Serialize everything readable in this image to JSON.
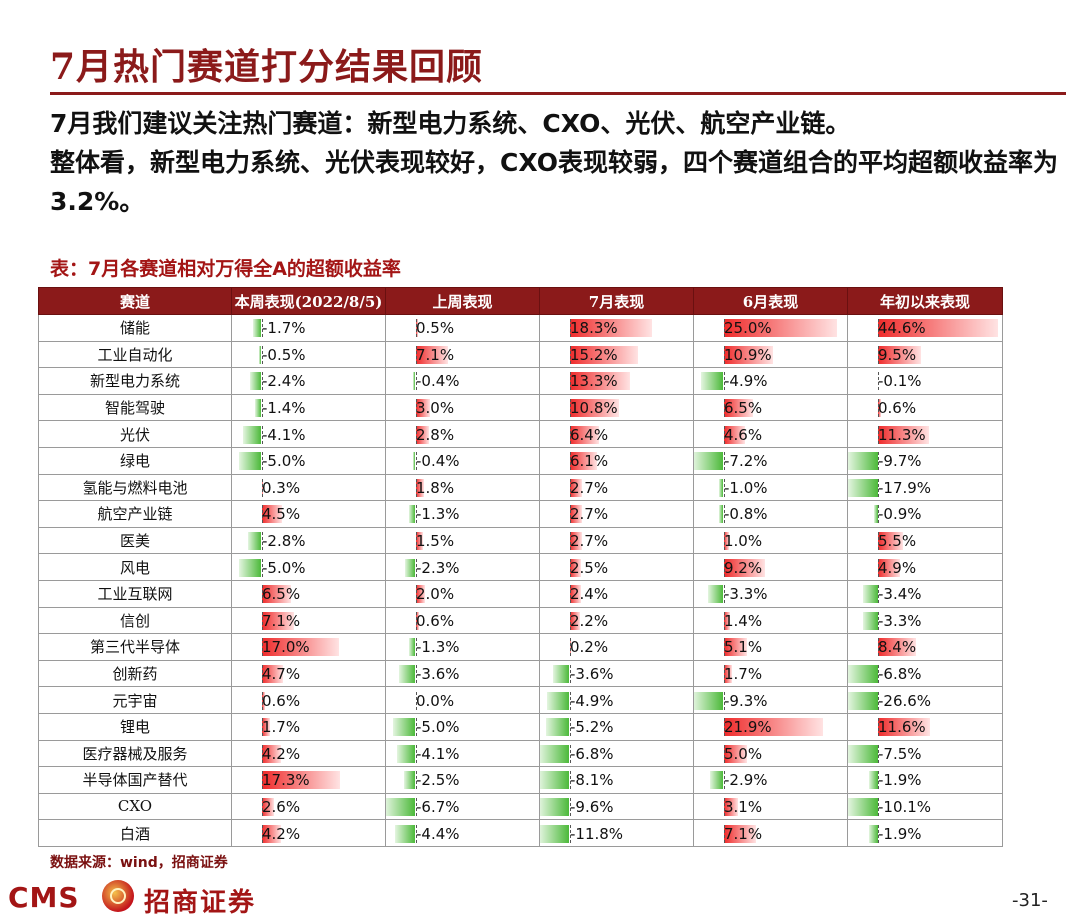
{
  "title": "7月热门赛道打分结果回顾",
  "summary": {
    "line1": "7月我们建议关注热门赛道：新型电力系统、CXO、光伏、航空产业链。",
    "line2": "整体看，新型电力系统、光伏表现较好，CXO表现较弱，四个赛道组合的平均超额收益率为3.2%。"
  },
  "table": {
    "caption": "表：7月各赛道相对万得全A的超额收益率",
    "headers": [
      "赛道",
      "本周表现(2022/8/5)",
      "上周表现",
      "7月表现",
      "6月表现",
      "年初以来表现"
    ],
    "colors": {
      "positive": "#ef2b2b",
      "negative": "#4cb93a",
      "header_bg": "#8b1a1a"
    },
    "rows": [
      {
        "name": "储能",
        "values": [
          "-1.7%",
          "0.5%",
          "18.3%",
          "25.0%",
          "44.6%"
        ]
      },
      {
        "name": "工业自动化",
        "values": [
          "-0.5%",
          "7.1%",
          "15.2%",
          "10.9%",
          "9.5%"
        ]
      },
      {
        "name": "新型电力系统",
        "values": [
          "-2.4%",
          "-0.4%",
          "13.3%",
          "-4.9%",
          "-0.1%"
        ]
      },
      {
        "name": "智能驾驶",
        "values": [
          "-1.4%",
          "3.0%",
          "10.8%",
          "6.5%",
          "0.6%"
        ]
      },
      {
        "name": "光伏",
        "values": [
          "-4.1%",
          "2.8%",
          "6.4%",
          "4.6%",
          "11.3%"
        ]
      },
      {
        "name": "绿电",
        "values": [
          "-5.0%",
          "-0.4%",
          "6.1%",
          "-7.2%",
          "-9.7%"
        ]
      },
      {
        "name": "氢能与燃料电池",
        "values": [
          "0.3%",
          "1.8%",
          "2.7%",
          "-1.0%",
          "-17.9%"
        ]
      },
      {
        "name": "航空产业链",
        "values": [
          "4.5%",
          "-1.3%",
          "2.7%",
          "-0.8%",
          "-0.9%"
        ]
      },
      {
        "name": "医美",
        "values": [
          "-2.8%",
          "1.5%",
          "2.7%",
          "1.0%",
          "5.5%"
        ]
      },
      {
        "name": "风电",
        "values": [
          "-5.0%",
          "-2.3%",
          "2.5%",
          "9.2%",
          "4.9%"
        ]
      },
      {
        "name": "工业互联网",
        "values": [
          "6.5%",
          "2.0%",
          "2.4%",
          "-3.3%",
          "-3.4%"
        ]
      },
      {
        "name": "信创",
        "values": [
          "7.1%",
          "0.6%",
          "2.2%",
          "1.4%",
          "-3.3%"
        ]
      },
      {
        "name": "第三代半导体",
        "values": [
          "17.0%",
          "-1.3%",
          "0.2%",
          "5.1%",
          "8.4%"
        ]
      },
      {
        "name": "创新药",
        "values": [
          "4.7%",
          "-3.6%",
          "-3.6%",
          "1.7%",
          "-6.8%"
        ]
      },
      {
        "name": "元宇宙",
        "values": [
          "0.6%",
          "0.0%",
          "-4.9%",
          "-9.3%",
          "-26.6%"
        ]
      },
      {
        "name": "锂电",
        "values": [
          "1.7%",
          "-5.0%",
          "-5.2%",
          "21.9%",
          "11.6%"
        ]
      },
      {
        "name": "医疗器械及服务",
        "values": [
          "4.2%",
          "-4.1%",
          "-6.8%",
          "5.0%",
          "-7.5%"
        ]
      },
      {
        "name": "半导体国产替代",
        "values": [
          "17.3%",
          "-2.5%",
          "-8.1%",
          "-2.9%",
          "-1.9%"
        ]
      },
      {
        "name": "CXO",
        "values": [
          "2.6%",
          "-6.7%",
          "-9.6%",
          "3.1%",
          "-10.1%"
        ]
      },
      {
        "name": "白酒",
        "values": [
          "4.2%",
          "-4.4%",
          "-11.8%",
          "7.1%",
          "-1.9%"
        ]
      }
    ]
  },
  "footnote": "数据来源：wind，招商证券",
  "logo": {
    "cms": "CMS",
    "name": "招商证券",
    "icon": "cms-emblem-icon"
  },
  "page_number": "-31-"
}
